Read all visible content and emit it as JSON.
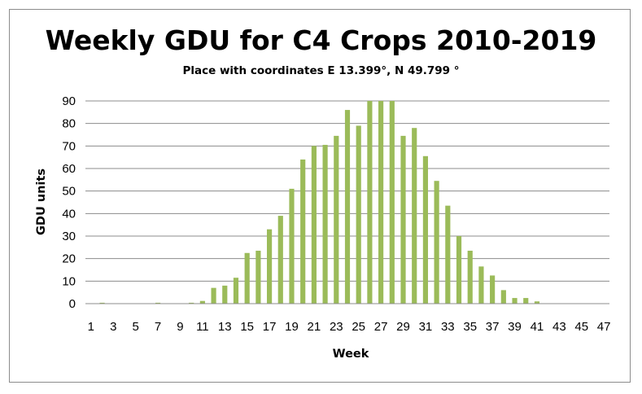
{
  "chart_data": {
    "type": "bar",
    "title": "Weekly GDU for C4 Crops 2010-2019",
    "subtitle": "Place with coordinates E 13.399°, N 49.799 °",
    "xlabel": "Week",
    "ylabel": "GDU units",
    "ylim": [
      0,
      90
    ],
    "yticks": [
      0,
      10,
      20,
      30,
      40,
      50,
      60,
      70,
      80,
      90
    ],
    "grid": true,
    "legend": "none",
    "bar_color": "#9bbb59",
    "categories": [
      1,
      2,
      3,
      4,
      5,
      6,
      7,
      8,
      9,
      10,
      11,
      12,
      13,
      14,
      15,
      16,
      17,
      18,
      19,
      20,
      21,
      22,
      23,
      24,
      25,
      26,
      27,
      28,
      29,
      30,
      31,
      32,
      33,
      34,
      35,
      36,
      37,
      38,
      39,
      40,
      41,
      42,
      43,
      44,
      45,
      46,
      47
    ],
    "x_tick_labels": [
      "1",
      "3",
      "5",
      "7",
      "9",
      "11",
      "13",
      "15",
      "17",
      "19",
      "21",
      "23",
      "25",
      "27",
      "29",
      "31",
      "33",
      "35",
      "37",
      "39",
      "41",
      "43",
      "45",
      "47"
    ],
    "values": [
      0,
      0.4,
      0,
      0,
      0,
      0,
      0.4,
      0,
      0,
      0.4,
      1.2,
      7,
      8,
      11.5,
      22.5,
      23.5,
      33,
      39,
      51,
      64,
      70,
      70.5,
      74.5,
      86,
      79,
      90,
      91,
      90,
      74.5,
      78,
      65.5,
      54.5,
      43.5,
      30,
      23.5,
      16.5,
      12.5,
      6,
      2.5,
      2.5,
      1,
      0,
      0,
      0,
      0,
      0,
      0
    ]
  }
}
